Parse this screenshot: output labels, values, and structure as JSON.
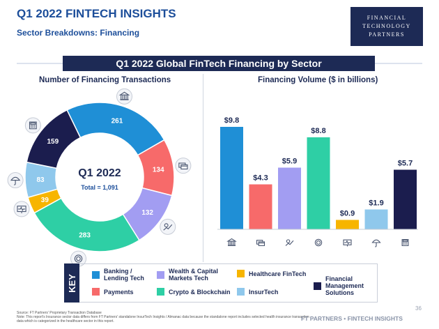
{
  "header": {
    "title": "Q1 2022 FINTECH INSIGHTS",
    "subtitle": "Sector Breakdowns: Financing",
    "logo_line1": "FINANCIAL",
    "logo_line2": "TECHNOLOGY",
    "logo_line3": "PARTNERS"
  },
  "banner": "Q1 2022 Global FinTech Financing by Sector",
  "colors": {
    "banking": "#1f8fd6",
    "payments": "#f76a6a",
    "wealth": "#a29df2",
    "crypto": "#2ecfa5",
    "healthcare": "#f7b500",
    "insurtech": "#8fc8ec",
    "fms": "#1b1d4e"
  },
  "chart_data": [
    {
      "type": "pie",
      "title": "Number of Financing Transactions",
      "center_label": "Q1 2022",
      "total_label": "Total = 1,091",
      "slices": [
        {
          "sector": "Banking / Lending Tech",
          "value": 261,
          "color": "#1f8fd6",
          "icon": "bank-icon"
        },
        {
          "sector": "Payments",
          "value": 134,
          "color": "#f76a6a",
          "icon": "card-icon"
        },
        {
          "sector": "Wealth & Capital Markets Tech",
          "value": 132,
          "color": "#a29df2",
          "icon": "wealth-icon"
        },
        {
          "sector": "Crypto & Blockchain",
          "value": 283,
          "color": "#2ecfa5",
          "icon": "crypto-icon"
        },
        {
          "sector": "Healthcare FinTech",
          "value": 39,
          "color": "#f7b500",
          "icon": "health-icon"
        },
        {
          "sector": "InsurTech",
          "value": 83,
          "color": "#8fc8ec",
          "icon": "umbrella-icon"
        },
        {
          "sector": "Financial Management Solutions",
          "value": 159,
          "color": "#1b1d4e",
          "icon": "calculator-icon"
        }
      ]
    },
    {
      "type": "bar",
      "title": "Financing Volume ($ in billions)",
      "categories": [
        "Banking / Lending Tech",
        "Payments",
        "Wealth & Capital Markets Tech",
        "Crypto & Blockchain",
        "Healthcare FinTech",
        "InsurTech",
        "Financial Management Solutions"
      ],
      "values": [
        9.8,
        4.3,
        5.9,
        8.8,
        0.9,
        1.9,
        5.7
      ],
      "labels": [
        "$9.8",
        "$4.3",
        "$5.9",
        "$8.8",
        "$0.9",
        "$1.9",
        "$5.7"
      ],
      "colors": [
        "#1f8fd6",
        "#f76a6a",
        "#a29df2",
        "#2ecfa5",
        "#f7b500",
        "#8fc8ec",
        "#1b1d4e"
      ],
      "icons": [
        "bank-icon",
        "card-icon",
        "wealth-icon",
        "crypto-icon",
        "health-icon",
        "umbrella-icon",
        "calculator-icon"
      ],
      "ylim": [
        0,
        10
      ]
    }
  ],
  "key": {
    "label": "KEY",
    "items": [
      {
        "text": "Banking / Lending Tech",
        "color": "#1f8fd6"
      },
      {
        "text": "Payments",
        "color": "#f76a6a"
      },
      {
        "text": "Wealth & Capital Markets Tech",
        "color": "#a29df2"
      },
      {
        "text": "Crypto & Blockchain",
        "color": "#2ecfa5"
      },
      {
        "text": "Healthcare FinTech",
        "color": "#f7b500"
      },
      {
        "text": "InsurTech",
        "color": "#8fc8ec"
      },
      {
        "text": "Financial Management Solutions",
        "color": "#1b1d4e"
      }
    ]
  },
  "footer": {
    "source": "Source: FT Partners' Proprietary Transaction Database",
    "note": "Note: This report's Insurance sector data differs from FT Partners' standalone InsurTech Insights / Almanac data because the standalone report includes selected health insurance transaction data which is categorized in the healthcare sector in this report.",
    "brand": "FT PARTNERS • FINTECH INSIGHTS",
    "page": "36"
  }
}
